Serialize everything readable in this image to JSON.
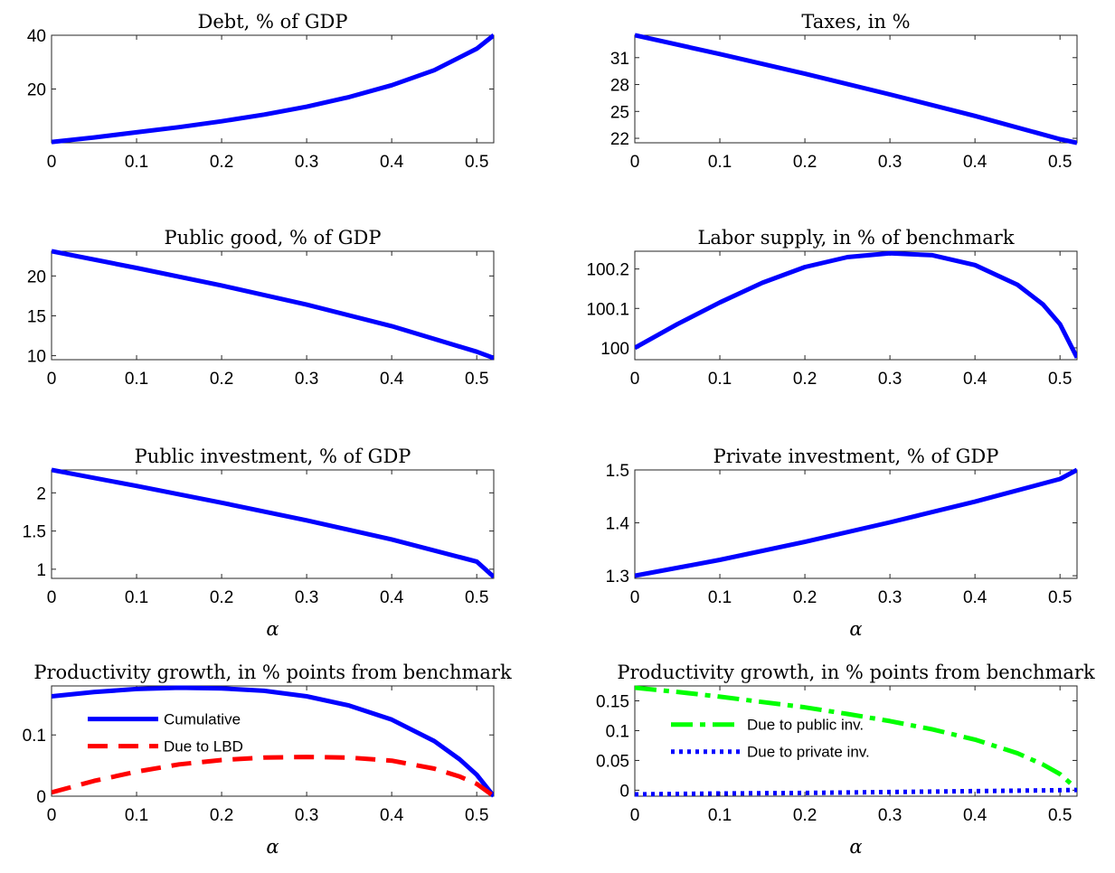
{
  "chart_data": [
    {
      "type": "line",
      "title": "Debt, % of GDP",
      "xlabel": "",
      "xlim": [
        0,
        0.52
      ],
      "ylim": [
        0,
        40
      ],
      "xticks": [
        "0",
        "0.1",
        "0.2",
        "0.3",
        "0.4",
        "0.5"
      ],
      "yticks": [
        "20",
        "40"
      ],
      "series": [
        {
          "color": "#0000ff",
          "style": "solid",
          "x": [
            0,
            0.05,
            0.1,
            0.15,
            0.2,
            0.25,
            0.3,
            0.35,
            0.4,
            0.45,
            0.5,
            0.52
          ],
          "y": [
            0.3,
            2.0,
            3.9,
            5.8,
            8.0,
            10.5,
            13.4,
            17.0,
            21.4,
            27.0,
            35.0,
            40.0
          ]
        }
      ]
    },
    {
      "type": "line",
      "title": "Taxes, in %",
      "xlabel": "",
      "xlim": [
        0,
        0.52
      ],
      "ylim": [
        21.5,
        33.5
      ],
      "xticks": [
        "0",
        "0.1",
        "0.2",
        "0.3",
        "0.4",
        "0.5"
      ],
      "yticks": [
        "22",
        "25",
        "28",
        "31"
      ],
      "series": [
        {
          "color": "#0000ff",
          "style": "solid",
          "x": [
            0,
            0.1,
            0.2,
            0.3,
            0.4,
            0.5,
            0.52
          ],
          "y": [
            33.5,
            31.4,
            29.2,
            26.9,
            24.5,
            21.9,
            21.5
          ]
        }
      ]
    },
    {
      "type": "line",
      "title": "Public good, % of GDP",
      "xlabel": "",
      "xlim": [
        0,
        0.52
      ],
      "ylim": [
        9.5,
        23.1
      ],
      "xticks": [
        "0",
        "0.1",
        "0.2",
        "0.3",
        "0.4",
        "0.5"
      ],
      "yticks": [
        "10",
        "15",
        "20"
      ],
      "series": [
        {
          "color": "#0000ff",
          "style": "solid",
          "x": [
            0,
            0.1,
            0.2,
            0.3,
            0.4,
            0.5,
            0.52
          ],
          "y": [
            23.1,
            21.0,
            18.8,
            16.4,
            13.7,
            10.5,
            9.7
          ]
        }
      ]
    },
    {
      "type": "line",
      "title": "Labor supply, in % of benchmark",
      "xlabel": "",
      "xlim": [
        0,
        0.52
      ],
      "ylim": [
        99.97,
        100.245
      ],
      "xticks": [
        "0",
        "0.1",
        "0.2",
        "0.3",
        "0.4",
        "0.5"
      ],
      "yticks": [
        "100",
        "100.1",
        "100.2"
      ],
      "series": [
        {
          "color": "#0000ff",
          "style": "solid",
          "x": [
            0,
            0.05,
            0.1,
            0.15,
            0.2,
            0.25,
            0.3,
            0.35,
            0.4,
            0.45,
            0.48,
            0.5,
            0.52
          ],
          "y": [
            100.0,
            100.06,
            100.115,
            100.165,
            100.205,
            100.23,
            100.24,
            100.235,
            100.21,
            100.16,
            100.11,
            100.06,
            99.975
          ]
        }
      ]
    },
    {
      "type": "line",
      "title": "Public investment, % of GDP",
      "xlabel": "α",
      "xlim": [
        0,
        0.52
      ],
      "ylim": [
        0.88,
        2.3
      ],
      "xticks": [
        "0",
        "0.1",
        "0.2",
        "0.3",
        "0.4",
        "0.5"
      ],
      "yticks": [
        "1",
        "1.5",
        "2"
      ],
      "series": [
        {
          "color": "#0000ff",
          "style": "solid",
          "x": [
            0,
            0.1,
            0.2,
            0.3,
            0.4,
            0.5,
            0.52
          ],
          "y": [
            2.3,
            2.09,
            1.87,
            1.64,
            1.39,
            1.1,
            0.9
          ]
        }
      ]
    },
    {
      "type": "line",
      "title": "Private investment, % of GDP",
      "xlabel": "α",
      "xlim": [
        0,
        0.52
      ],
      "ylim": [
        1.295,
        1.5
      ],
      "xticks": [
        "0",
        "0.1",
        "0.2",
        "0.3",
        "0.4",
        "0.5"
      ],
      "yticks": [
        "1.3",
        "1.4",
        "1.5"
      ],
      "series": [
        {
          "color": "#0000ff",
          "style": "solid",
          "x": [
            0,
            0.1,
            0.2,
            0.3,
            0.4,
            0.5,
            0.52
          ],
          "y": [
            1.3,
            1.33,
            1.364,
            1.401,
            1.44,
            1.483,
            1.5
          ]
        }
      ]
    },
    {
      "type": "line",
      "title": "Productivity growth, in % points from benchmark",
      "xlabel": "α",
      "xlim": [
        0,
        0.52
      ],
      "ylim": [
        0,
        0.18
      ],
      "xticks": [
        "0",
        "0.1",
        "0.2",
        "0.3",
        "0.4",
        "0.5"
      ],
      "yticks": [
        "0",
        "0.1"
      ],
      "legend_position": "upper-left",
      "series": [
        {
          "name": "Cumulative",
          "color": "#0000ff",
          "style": "solid",
          "x": [
            0,
            0.05,
            0.1,
            0.15,
            0.2,
            0.25,
            0.3,
            0.35,
            0.4,
            0.45,
            0.48,
            0.5,
            0.52
          ],
          "y": [
            0.163,
            0.17,
            0.175,
            0.177,
            0.176,
            0.172,
            0.163,
            0.148,
            0.125,
            0.09,
            0.06,
            0.035,
            0.0
          ]
        },
        {
          "name": "Due to LBD",
          "color": "#ff0000",
          "style": "dashed",
          "x": [
            0,
            0.05,
            0.1,
            0.15,
            0.2,
            0.25,
            0.3,
            0.35,
            0.4,
            0.45,
            0.48,
            0.5,
            0.52
          ],
          "y": [
            0.006,
            0.025,
            0.04,
            0.052,
            0.059,
            0.063,
            0.064,
            0.063,
            0.058,
            0.045,
            0.032,
            0.02,
            0.0
          ]
        }
      ]
    },
    {
      "type": "line",
      "title": "Productivity growth, in % points from benchmark",
      "xlabel": "α",
      "xlim": [
        0,
        0.52
      ],
      "ylim": [
        -0.01,
        0.175
      ],
      "xticks": [
        "0",
        "0.1",
        "0.2",
        "0.3",
        "0.4",
        "0.5"
      ],
      "yticks": [
        "0",
        "0.05",
        "0.1",
        "0.15"
      ],
      "legend_position": "middle-left",
      "series": [
        {
          "name": "Due to public inv.",
          "color": "#00ff00",
          "style": "dashdot",
          "x": [
            0,
            0.05,
            0.1,
            0.15,
            0.2,
            0.25,
            0.3,
            0.35,
            0.4,
            0.45,
            0.48,
            0.5,
            0.52
          ],
          "y": [
            0.172,
            0.165,
            0.157,
            0.148,
            0.139,
            0.128,
            0.116,
            0.102,
            0.085,
            0.062,
            0.043,
            0.027,
            0.002
          ]
        },
        {
          "name": "Due to private inv.",
          "color": "#0000ff",
          "style": "dotted",
          "x": [
            0,
            0.1,
            0.2,
            0.3,
            0.4,
            0.5,
            0.52
          ],
          "y": [
            -0.007,
            -0.0055,
            -0.0045,
            -0.003,
            -0.0015,
            0.0,
            0.0005
          ]
        }
      ]
    }
  ]
}
